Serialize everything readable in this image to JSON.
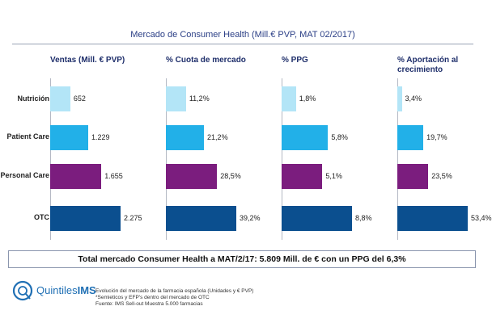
{
  "title": "Mercado de Consumer Health (Mill.€ PVP, MAT 02/2017)",
  "colors": {
    "Nutrición": "#b3e5f7",
    "Patient Care": "#22b0e8",
    "Personal Care": "#7b1d7e",
    "OTC": "#0b4f8f"
  },
  "chart_data": {
    "type": "bar",
    "orientation": "horizontal",
    "title": "Mercado de Consumer Health (Mill.€ PVP, MAT 02/2017)",
    "categories": [
      "Nutrición",
      "Patient Care",
      "Personal Care",
      "OTC"
    ],
    "panels": [
      {
        "header": "Ventas (Mill. € PVP)",
        "values": [
          652,
          1229,
          1655,
          2275
        ],
        "labels": [
          "652",
          "1.229",
          "1.655",
          "2.275"
        ],
        "max": 2275
      },
      {
        "header": "% Cuota de mercado",
        "values": [
          11.2,
          21.2,
          28.5,
          39.2
        ],
        "labels": [
          "11,2%",
          "21,2%",
          "28,5%",
          "39,2%"
        ],
        "max": 39.2
      },
      {
        "header": "% PPG",
        "values": [
          1.8,
          5.8,
          5.1,
          8.8
        ],
        "labels": [
          "1,8%",
          "5,8%",
          "5,1%",
          "8,8%"
        ],
        "max": 8.8
      },
      {
        "header": "% Aportación al crecimiento",
        "values": [
          3.4,
          19.7,
          23.5,
          53.4
        ],
        "labels": [
          "3,4%",
          "19,7%",
          "23,5%",
          "53,4%"
        ],
        "max": 53.4
      }
    ]
  },
  "summary": {
    "total_text": "Total mercado Consumer Health a MAT/2/17: 5.809 Mill. de € con un PPG del 6,3%"
  },
  "footer": {
    "logo_text_light": "Quintiles",
    "logo_text_bold": "IMS",
    "notes": [
      "Evolución del mercado de la farmacia española (Unidades y € PVP)",
      "*Semieticos y EFP's dentro del mercado de OTC",
      "Fuente: IMS Sell-out Muestra 5.000 farmacias"
    ]
  }
}
